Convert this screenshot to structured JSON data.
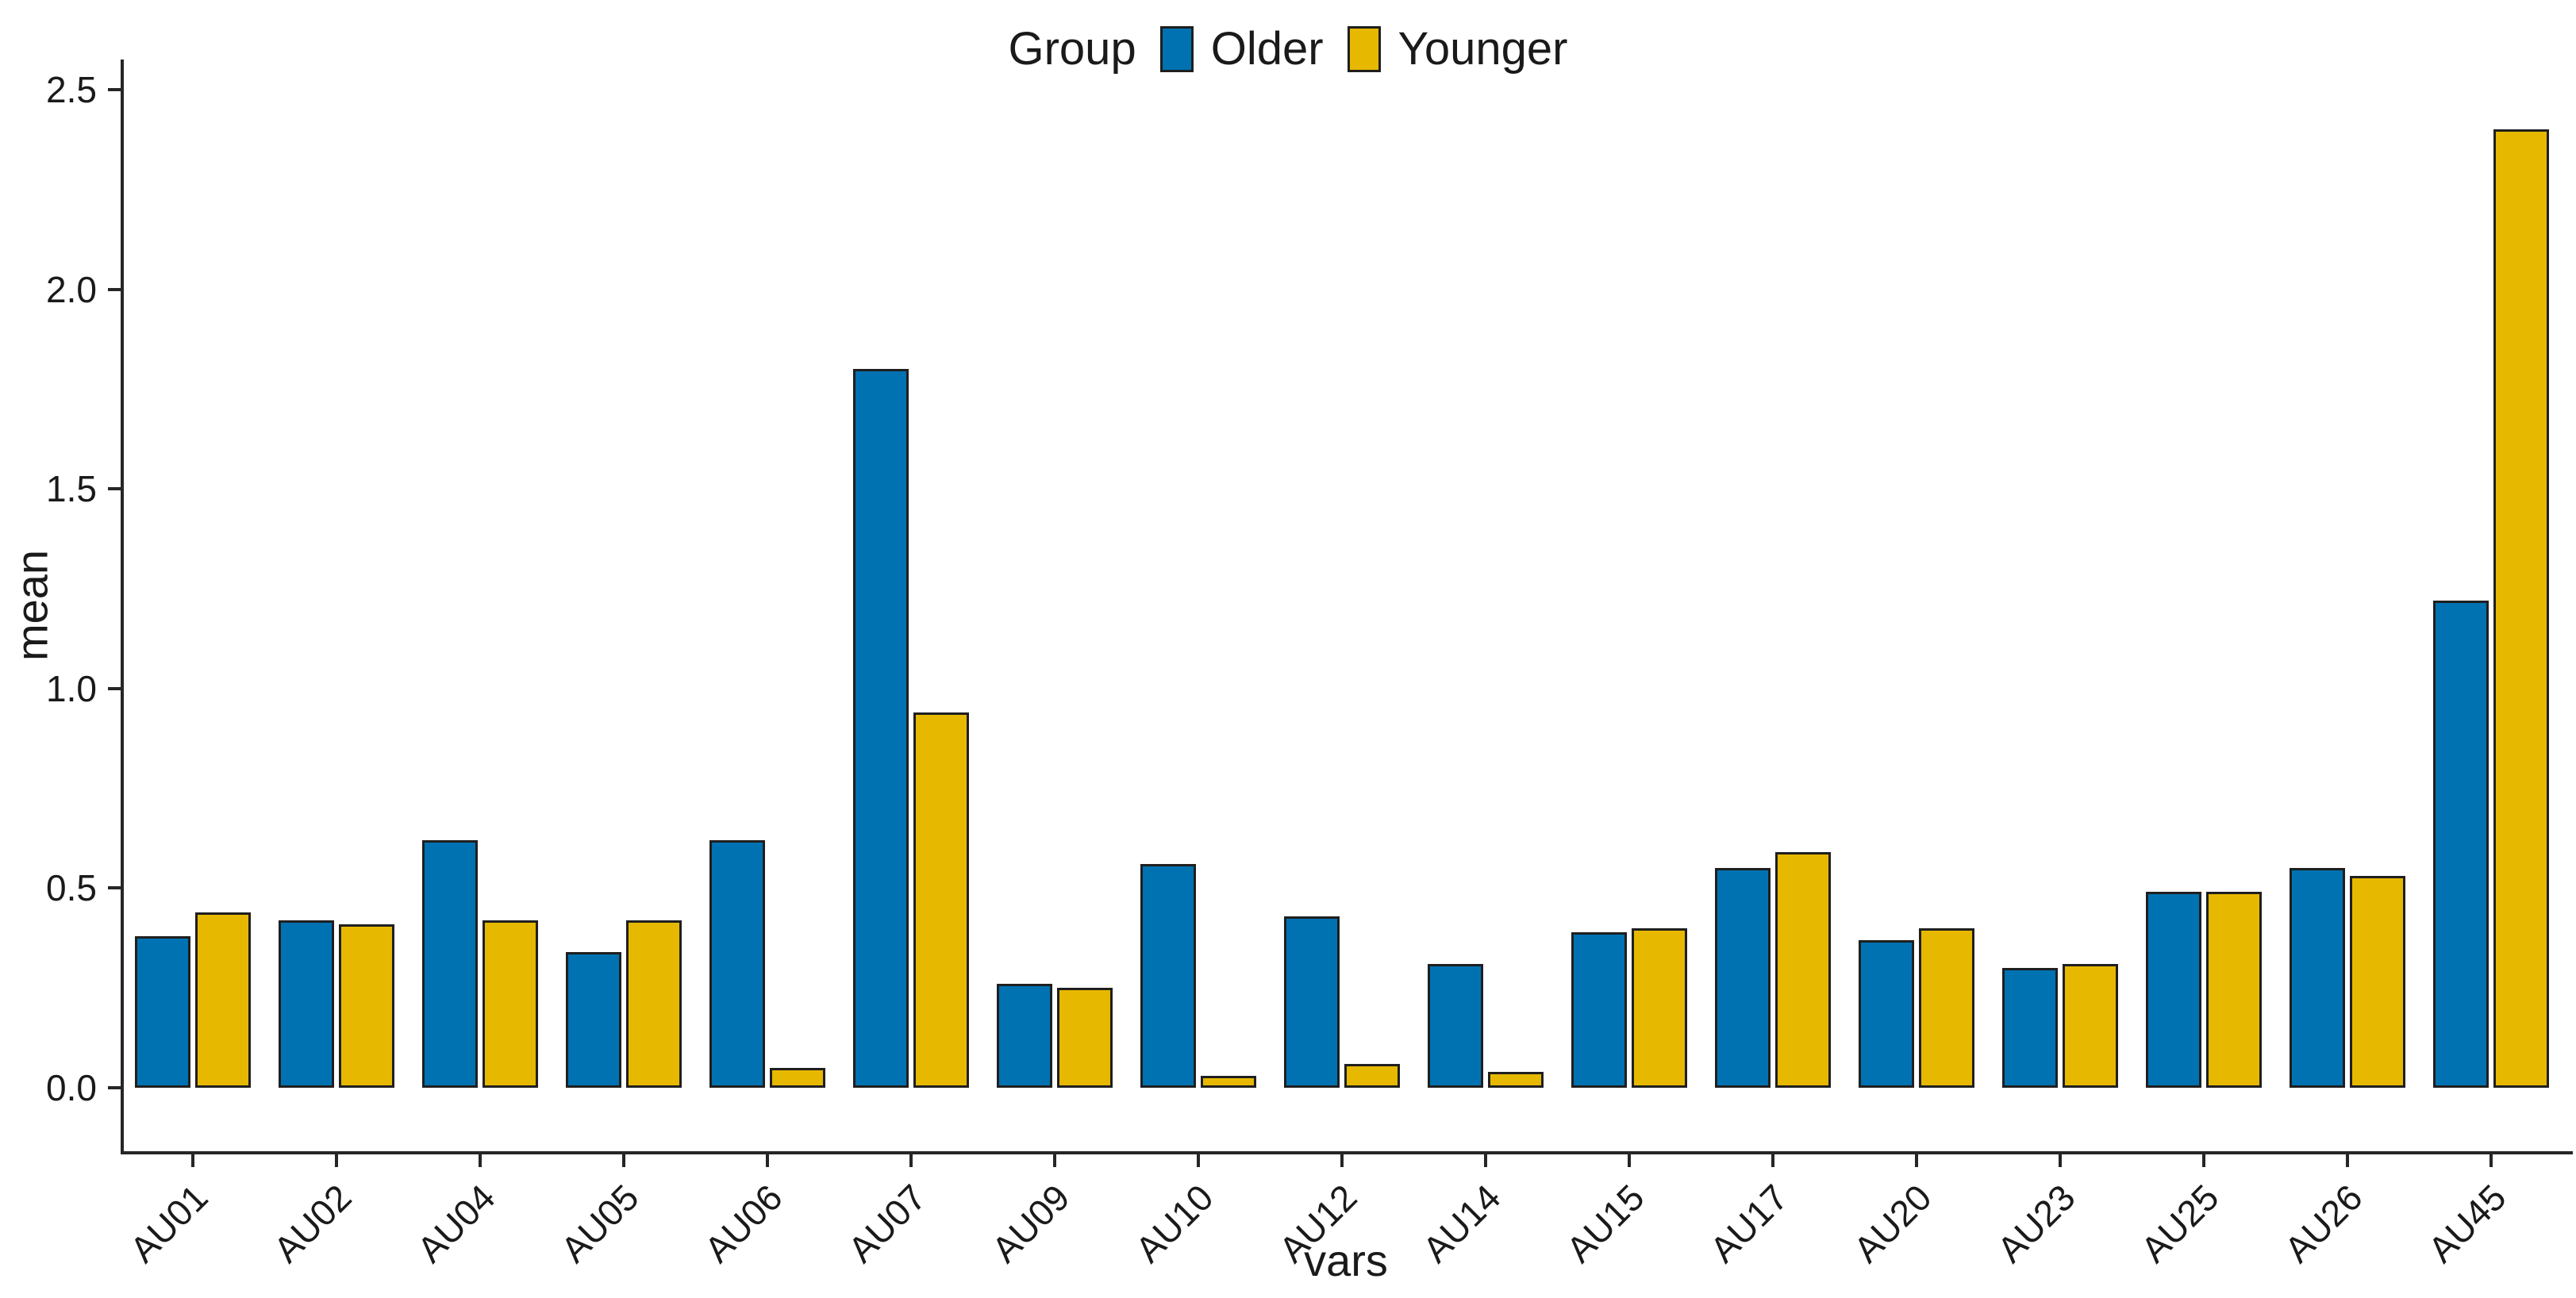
{
  "legend": {
    "title": "Group",
    "items": [
      {
        "label": "Older",
        "color": "#0072B2"
      },
      {
        "label": "Younger",
        "color": "#E7B800"
      }
    ]
  },
  "chart_data": {
    "type": "bar",
    "title": "",
    "xlabel": "vars",
    "ylabel": "mean",
    "categories": [
      "AU01",
      "AU02",
      "AU04",
      "AU05",
      "AU06",
      "AU07",
      "AU09",
      "AU10",
      "AU12",
      "AU14",
      "AU15",
      "AU17",
      "AU20",
      "AU23",
      "AU25",
      "AU26",
      "AU45"
    ],
    "series": [
      {
        "name": "Older",
        "color": "#0072B2",
        "values": [
          0.38,
          0.42,
          0.62,
          0.34,
          0.62,
          1.8,
          0.26,
          0.56,
          0.43,
          0.31,
          0.39,
          0.55,
          0.37,
          0.3,
          0.49,
          0.55,
          1.22
        ]
      },
      {
        "name": "Younger",
        "color": "#E7B800",
        "values": [
          0.44,
          0.41,
          0.42,
          0.42,
          0.05,
          0.94,
          0.25,
          0.03,
          0.06,
          0.04,
          0.4,
          0.59,
          0.4,
          0.31,
          0.49,
          0.53,
          2.4
        ]
      }
    ],
    "ylim": [
      0,
      2.5
    ],
    "y_ticks": [
      "0.0",
      "0.5",
      "1.0",
      "1.5",
      "2.0",
      "2.5"
    ],
    "grid": false,
    "legend_position": "top",
    "bar_outline_color": "#1f1f1f",
    "axis_color": "#262626",
    "text_color": "#1a1a1a"
  }
}
